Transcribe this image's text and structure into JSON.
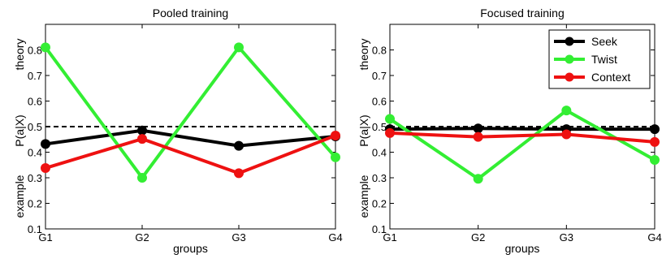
{
  "chart_data": [
    {
      "type": "line",
      "title": "Pooled training",
      "xlabel": "groups",
      "ylabel": "P(a|X)",
      "ylabel_top": "theory",
      "ylabel_bottom": "example",
      "categories": [
        "G1",
        "G2",
        "G3",
        "G4"
      ],
      "ylim": [
        0.1,
        0.9
      ],
      "yticks": [
        "0.1",
        "0.2",
        "0.3",
        "0.4",
        "0.5",
        "0.6",
        "0.7",
        "0.8"
      ],
      "reference_line": 0.5,
      "series": [
        {
          "name": "Seek",
          "color": "#000000",
          "values": [
            0.432,
            0.485,
            0.425,
            0.462
          ]
        },
        {
          "name": "Twist",
          "color": "#33ee33",
          "values": [
            0.81,
            0.3,
            0.81,
            0.38
          ]
        },
        {
          "name": "Context",
          "color": "#ee1111",
          "values": [
            0.338,
            0.452,
            0.318,
            0.465
          ]
        }
      ],
      "legend": false
    },
    {
      "type": "line",
      "title": "Focused training",
      "xlabel": "groups",
      "ylabel": "P(a|X)",
      "ylabel_top": "theory",
      "ylabel_bottom": "example",
      "categories": [
        "G1",
        "G2",
        "G3",
        "G4"
      ],
      "ylim": [
        0.1,
        0.9
      ],
      "yticks": [
        "0.1",
        "0.2",
        "0.3",
        "0.4",
        "0.5",
        "0.6",
        "0.7",
        "0.8"
      ],
      "reference_line": 0.5,
      "series": [
        {
          "name": "Seek",
          "color": "#000000",
          "values": [
            0.49,
            0.493,
            0.49,
            0.49
          ]
        },
        {
          "name": "Twist",
          "color": "#33ee33",
          "values": [
            0.53,
            0.296,
            0.563,
            0.37
          ]
        },
        {
          "name": "Context",
          "color": "#ee1111",
          "values": [
            0.475,
            0.46,
            0.47,
            0.44
          ]
        }
      ],
      "legend": true,
      "legend_position": "top-right"
    }
  ]
}
